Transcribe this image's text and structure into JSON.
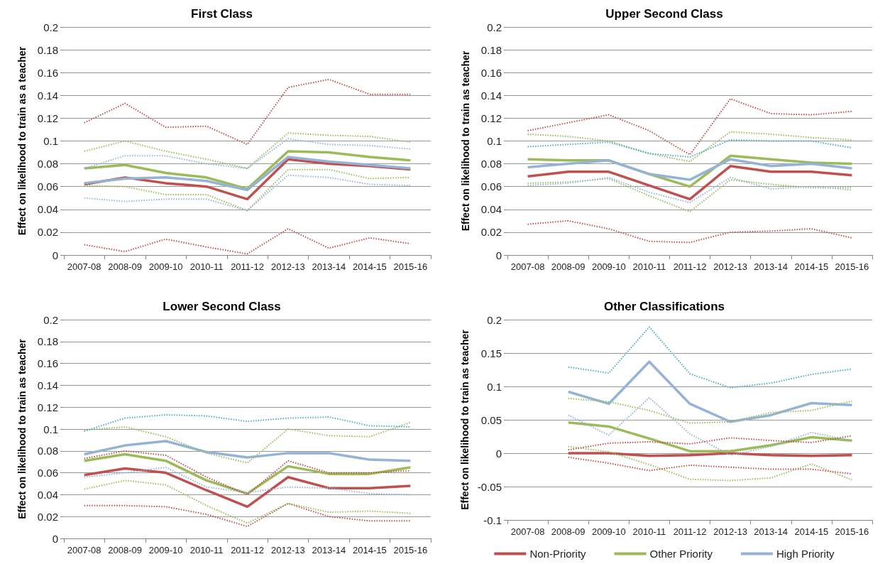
{
  "chart_data": [
    {
      "type": "line",
      "title": "First Class",
      "ylabel": "Effect on likelihood to train as a teacher",
      "categories": [
        "2007-08",
        "2008-09",
        "2009-10",
        "2010-11",
        "2011-12",
        "2012-13",
        "2013-14",
        "2014-15",
        "2015-16"
      ],
      "ylim": [
        0,
        0.2
      ],
      "yticks": [
        0,
        0.02,
        0.04,
        0.06,
        0.08,
        0.1,
        0.12,
        0.14,
        0.16,
        0.18,
        0.2
      ],
      "grid": "y",
      "marker": "none",
      "legend": false,
      "series": [
        {
          "color": "#c0504d",
          "line_style": "dotted",
          "values": [
            0.116,
            0.133,
            0.112,
            0.113,
            0.097,
            0.147,
            0.154,
            0.141,
            0.141
          ]
        },
        {
          "color": "#c0504d",
          "line_style": "dotted",
          "values": [
            0.009,
            0.003,
            0.014,
            0.007,
            0.001,
            0.023,
            0.006,
            0.015,
            0.01
          ]
        },
        {
          "color": "#9bbb59",
          "line_style": "dotted",
          "values": [
            0.091,
            0.1,
            0.091,
            0.084,
            0.076,
            0.107,
            0.105,
            0.104,
            0.099
          ]
        },
        {
          "color": "#9bbb59",
          "line_style": "dotted",
          "values": [
            0.061,
            0.06,
            0.053,
            0.053,
            0.039,
            0.075,
            0.075,
            0.067,
            0.068
          ]
        },
        {
          "color": "#95b3d7",
          "line_style": "dotted",
          "values": [
            0.076,
            0.087,
            0.087,
            0.08,
            0.076,
            0.102,
            0.097,
            0.096,
            0.093
          ]
        },
        {
          "color": "#95b3d7",
          "line_style": "dotted",
          "values": [
            0.05,
            0.047,
            0.049,
            0.049,
            0.039,
            0.07,
            0.068,
            0.062,
            0.061
          ]
        },
        {
          "color": "#9bbb59",
          "line_style": "solid",
          "values": [
            0.076,
            0.079,
            0.072,
            0.068,
            0.058,
            0.091,
            0.09,
            0.086,
            0.083
          ]
        },
        {
          "color": "#c0504d",
          "line_style": "solid",
          "values": [
            0.062,
            0.068,
            0.063,
            0.06,
            0.049,
            0.084,
            0.08,
            0.078,
            0.075
          ]
        },
        {
          "color": "#95b3d7",
          "line_style": "solid",
          "values": [
            0.063,
            0.067,
            0.068,
            0.065,
            0.057,
            0.086,
            0.082,
            0.079,
            0.076
          ]
        }
      ]
    },
    {
      "type": "line",
      "title": "Upper Second Class",
      "ylabel": "Effect on likelihood to train as teacher",
      "categories": [
        "2007-08",
        "2008-09",
        "2009-10",
        "2010-11",
        "2011-12",
        "2012-13",
        "2013-14",
        "2014-15",
        "2015-16"
      ],
      "ylim": [
        0,
        0.2
      ],
      "yticks": [
        0,
        0.02,
        0.04,
        0.06,
        0.08,
        0.1,
        0.12,
        0.14,
        0.16,
        0.18,
        0.2
      ],
      "grid": "y",
      "marker": "none",
      "legend": false,
      "series": [
        {
          "color": "#c0504d",
          "line_style": "dotted",
          "values": [
            0.109,
            0.116,
            0.123,
            0.109,
            0.088,
            0.137,
            0.124,
            0.123,
            0.126
          ]
        },
        {
          "color": "#c0504d",
          "line_style": "dotted",
          "values": [
            0.027,
            0.03,
            0.023,
            0.012,
            0.011,
            0.02,
            0.021,
            0.023,
            0.015
          ]
        },
        {
          "color": "#9bbb59",
          "line_style": "dotted",
          "values": [
            0.106,
            0.104,
            0.1,
            0.089,
            0.082,
            0.108,
            0.106,
            0.103,
            0.101
          ]
        },
        {
          "color": "#9bbb59",
          "line_style": "dotted",
          "values": [
            0.063,
            0.064,
            0.067,
            0.052,
            0.038,
            0.066,
            0.062,
            0.059,
            0.059
          ]
        },
        {
          "color": "#4bacc6",
          "line_style": "dotted",
          "values": [
            0.095,
            0.097,
            0.099,
            0.089,
            0.086,
            0.101,
            0.1,
            0.1,
            0.094
          ]
        },
        {
          "color": "#95b3d7",
          "line_style": "dotted",
          "values": [
            0.061,
            0.063,
            0.068,
            0.055,
            0.046,
            0.068,
            0.058,
            0.06,
            0.057
          ]
        },
        {
          "color": "#c0504d",
          "line_style": "solid",
          "values": [
            0.069,
            0.073,
            0.073,
            0.061,
            0.049,
            0.078,
            0.073,
            0.073,
            0.07
          ]
        },
        {
          "color": "#9bbb59",
          "line_style": "solid",
          "values": [
            0.084,
            0.083,
            0.083,
            0.071,
            0.06,
            0.087,
            0.084,
            0.081,
            0.08
          ]
        },
        {
          "color": "#95b3d7",
          "line_style": "solid",
          "values": [
            0.077,
            0.08,
            0.083,
            0.071,
            0.066,
            0.084,
            0.078,
            0.08,
            0.076
          ]
        }
      ]
    },
    {
      "type": "line",
      "title": "Lower Second Class",
      "ylabel": "Effect on likelihood to train as teacher",
      "categories": [
        "2007-08",
        "2008-09",
        "2009-10",
        "2010-11",
        "2011-12",
        "2012-13",
        "2013-14",
        "2014-15",
        "2015-16"
      ],
      "ylim": [
        0,
        0.2
      ],
      "yticks": [
        0,
        0.02,
        0.04,
        0.06,
        0.08,
        0.1,
        0.12,
        0.14,
        0.16,
        0.18,
        0.2
      ],
      "grid": "y",
      "marker": "none",
      "legend": false,
      "series": [
        {
          "color": "#c0504d",
          "line_style": "dotted",
          "values": [
            0.073,
            0.08,
            0.076,
            0.056,
            0.04,
            0.071,
            0.06,
            0.06,
            0.062
          ]
        },
        {
          "color": "#c0504d",
          "line_style": "dotted",
          "values": [
            0.03,
            0.03,
            0.029,
            0.022,
            0.011,
            0.032,
            0.02,
            0.016,
            0.016
          ]
        },
        {
          "color": "#9bbb59",
          "line_style": "dotted",
          "values": [
            0.099,
            0.102,
            0.093,
            0.078,
            0.069,
            0.1,
            0.094,
            0.093,
            0.106
          ]
        },
        {
          "color": "#9bbb59",
          "line_style": "dotted",
          "values": [
            0.045,
            0.053,
            0.049,
            0.03,
            0.014,
            0.032,
            0.024,
            0.025,
            0.023
          ]
        },
        {
          "color": "#4bacc6",
          "line_style": "dotted",
          "values": [
            0.098,
            0.11,
            0.113,
            0.112,
            0.107,
            0.11,
            0.111,
            0.103,
            0.102
          ]
        },
        {
          "color": "#95b3d7",
          "line_style": "dotted",
          "values": [
            0.056,
            0.06,
            0.065,
            0.047,
            0.042,
            0.047,
            0.046,
            0.041,
            0.04
          ]
        },
        {
          "color": "#c0504d",
          "line_style": "solid",
          "values": [
            0.058,
            0.064,
            0.06,
            0.044,
            0.029,
            0.056,
            0.046,
            0.046,
            0.048
          ]
        },
        {
          "color": "#9bbb59",
          "line_style": "solid",
          "values": [
            0.071,
            0.077,
            0.071,
            0.053,
            0.041,
            0.066,
            0.059,
            0.059,
            0.065
          ]
        },
        {
          "color": "#95b3d7",
          "line_style": "solid",
          "values": [
            0.077,
            0.085,
            0.089,
            0.079,
            0.074,
            0.078,
            0.078,
            0.072,
            0.071
          ]
        }
      ]
    },
    {
      "type": "line",
      "title": "Other Classifications",
      "ylabel": "Effect on likelihood to train as teacher",
      "categories": [
        "2007-08",
        "2008-09",
        "2009-10",
        "2010-11",
        "2011-12",
        "2012-13",
        "2013-14",
        "2014-15",
        "2015-16"
      ],
      "ylim": [
        -0.1,
        0.2
      ],
      "yticks": [
        -0.1,
        -0.05,
        0,
        0.05,
        0.1,
        0.15,
        0.2
      ],
      "grid": "y",
      "marker": "none",
      "legend": "bottom",
      "series": [
        {
          "color": "#4bacc6",
          "line_style": "dotted",
          "values": [
            null,
            0.129,
            0.12,
            0.189,
            0.119,
            0.098,
            0.105,
            0.118,
            0.126
          ]
        },
        {
          "color": "#95b3d7",
          "line_style": "dotted",
          "values": [
            null,
            0.057,
            0.027,
            0.083,
            0.029,
            -0.003,
            0.01,
            0.031,
            0.019
          ]
        },
        {
          "color": "#9bbb59",
          "line_style": "dotted",
          "values": [
            null,
            0.082,
            0.077,
            0.064,
            0.045,
            0.047,
            0.061,
            0.064,
            0.078
          ]
        },
        {
          "color": "#9bbb59",
          "line_style": "dotted",
          "values": [
            null,
            0.01,
            0.002,
            -0.017,
            -0.039,
            -0.041,
            -0.037,
            -0.016,
            -0.04
          ]
        },
        {
          "color": "#c0504d",
          "line_style": "dotted",
          "values": [
            null,
            0.005,
            0.015,
            0.017,
            0.014,
            0.023,
            0.019,
            0.016,
            0.026
          ]
        },
        {
          "color": "#c0504d",
          "line_style": "dotted",
          "values": [
            null,
            -0.006,
            -0.015,
            -0.026,
            -0.018,
            -0.021,
            -0.024,
            -0.024,
            -0.031
          ]
        },
        {
          "name": "Non-Priority",
          "color": "#c0504d",
          "line_style": "solid",
          "values": [
            null,
            0.0,
            0.0,
            -0.004,
            -0.003,
            0.0,
            -0.003,
            -0.004,
            -0.003
          ]
        },
        {
          "name": "Other Priority",
          "color": "#9bbb59",
          "line_style": "solid",
          "values": [
            null,
            0.046,
            0.04,
            0.022,
            0.003,
            0.003,
            0.012,
            0.024,
            0.019
          ]
        },
        {
          "name": "High Priority",
          "color": "#95b3d7",
          "line_style": "solid",
          "values": [
            null,
            0.092,
            0.074,
            0.137,
            0.074,
            0.047,
            0.057,
            0.075,
            0.072
          ]
        }
      ]
    }
  ]
}
